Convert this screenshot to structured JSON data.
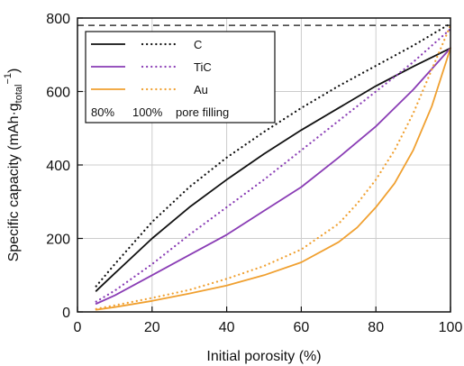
{
  "chart_data": {
    "type": "line",
    "xlabel": "Initial porosity (%)",
    "ylabel": {
      "main": "Specific capacity (mAh·g",
      "sub": "total",
      "sup": "−1",
      "close": ")"
    },
    "xlim": [
      0,
      100
    ],
    "ylim": [
      0,
      800
    ],
    "xticks": [
      0,
      20,
      40,
      60,
      80,
      100
    ],
    "yticks": [
      0,
      200,
      400,
      600,
      800
    ],
    "grid": true,
    "legend_position": "top-left",
    "reference_line": {
      "y": 780,
      "style": "dashed",
      "color": "#111111"
    },
    "legend": {
      "entries": [
        {
          "label": "C",
          "color": "#111111"
        },
        {
          "label": "TiC",
          "color": "#8a3db5"
        },
        {
          "label": "Au",
          "color": "#f0a030"
        }
      ],
      "footer": [
        "80%",
        "100%",
        "pore filling"
      ]
    },
    "series": [
      {
        "name": "C (80%)",
        "color": "#111111",
        "style": "solid",
        "x": [
          5,
          10,
          20,
          30,
          40,
          50,
          60,
          70,
          80,
          90,
          100
        ],
        "y": [
          57,
          105,
          200,
          285,
          360,
          430,
          495,
          555,
          615,
          668,
          718
        ]
      },
      {
        "name": "C (100%)",
        "color": "#111111",
        "style": "dotted",
        "x": [
          5,
          10,
          20,
          30,
          40,
          50,
          60,
          70,
          80,
          90,
          100
        ],
        "y": [
          70,
          130,
          245,
          340,
          420,
          490,
          555,
          615,
          670,
          725,
          785
        ]
      },
      {
        "name": "TiC (80%)",
        "color": "#8a3db5",
        "style": "solid",
        "x": [
          5,
          10,
          20,
          30,
          40,
          50,
          60,
          70,
          80,
          90,
          100
        ],
        "y": [
          22,
          45,
          100,
          155,
          210,
          275,
          340,
          420,
          505,
          605,
          718
        ]
      },
      {
        "name": "TiC (100%)",
        "color": "#8a3db5",
        "style": "dotted",
        "x": [
          5,
          10,
          20,
          30,
          40,
          50,
          60,
          70,
          80,
          90,
          100
        ],
        "y": [
          28,
          58,
          130,
          210,
          285,
          360,
          440,
          520,
          600,
          680,
          770
        ]
      },
      {
        "name": "Au (80%)",
        "color": "#f0a030",
        "style": "solid",
        "x": [
          5,
          10,
          20,
          30,
          40,
          50,
          60,
          70,
          75,
          80,
          85,
          90,
          95,
          100
        ],
        "y": [
          6,
          13,
          30,
          50,
          72,
          100,
          135,
          190,
          230,
          285,
          350,
          440,
          560,
          718
        ]
      },
      {
        "name": "Au (100%)",
        "color": "#f0a030",
        "style": "dotted",
        "x": [
          5,
          10,
          20,
          30,
          40,
          50,
          60,
          70,
          75,
          80,
          85,
          90,
          95,
          100
        ],
        "y": [
          8,
          18,
          38,
          60,
          90,
          125,
          170,
          240,
          295,
          360,
          440,
          540,
          660,
          780
        ]
      }
    ]
  }
}
